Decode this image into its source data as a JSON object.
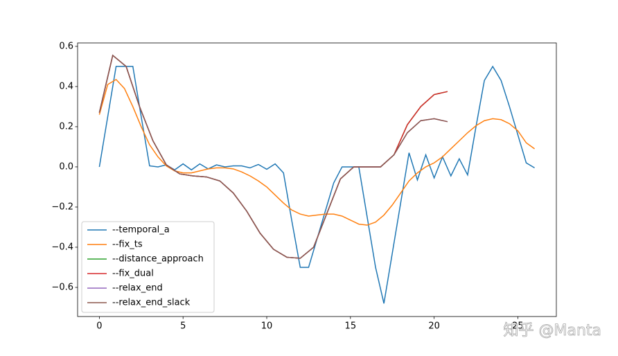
{
  "chart_data": {
    "type": "line",
    "xlim": [
      -1.3,
      27.3
    ],
    "ylim": [
      -0.745,
      0.617
    ],
    "xticks": [
      0,
      5,
      10,
      15,
      20,
      25
    ],
    "yticks": [
      {
        "value": -0.6,
        "label": "−0.6"
      },
      {
        "value": -0.4,
        "label": "−0.4"
      },
      {
        "value": -0.2,
        "label": "−0.2"
      },
      {
        "value": 0,
        "label": "0.0"
      },
      0.2,
      0.4,
      0.6
    ],
    "legend": "lower left",
    "watermark": "知乎 @Manta",
    "series": [
      {
        "name": "--temporal_a",
        "color": "#1f77b4",
        "x": [
          0,
          0.5,
          1,
          1.5,
          2,
          2.5,
          3,
          3.5,
          4,
          4.5,
          5,
          5.5,
          6,
          6.5,
          7,
          7.5,
          8,
          8.5,
          9,
          9.5,
          10,
          10.5,
          11,
          11.5,
          12,
          12.5,
          13,
          13.5,
          14,
          14.5,
          15,
          15.5,
          16,
          16.5,
          17,
          17.5,
          18,
          18.5,
          19,
          19.5,
          20,
          20.5,
          21,
          21.5,
          22,
          22.5,
          23,
          23.5,
          24,
          24.5,
          25,
          25.5,
          26
        ],
        "values": [
          0,
          0.25,
          0.5,
          0.5,
          0.5,
          0.25,
          0.005,
          0,
          0.01,
          -0.015,
          0.015,
          -0.015,
          0.015,
          -0.01,
          0.01,
          0,
          0.005,
          0.005,
          -0.005,
          0.012,
          -0.012,
          0.015,
          -0.03,
          -0.27,
          -0.5,
          -0.5,
          -0.36,
          -0.22,
          -0.08,
          0,
          0,
          0,
          -0.25,
          -0.5,
          -0.68,
          -0.43,
          -0.18,
          0.07,
          -0.065,
          0.06,
          -0.055,
          0.05,
          -0.045,
          0.04,
          -0.04,
          0.2,
          0.43,
          0.5,
          0.43,
          0.3,
          0.16,
          0.02,
          -0.005
        ]
      },
      {
        "name": "--fix_ts",
        "color": "#ff7f0e",
        "x": [
          0,
          0.5,
          1,
          1.5,
          2,
          2.5,
          3,
          3.5,
          4,
          4.5,
          5,
          5.5,
          6,
          6.5,
          7,
          7.5,
          8,
          8.5,
          9,
          9.5,
          10,
          10.5,
          11,
          11.5,
          12,
          12.5,
          13,
          13.5,
          14,
          14.5,
          15,
          15.5,
          16,
          16.5,
          17,
          17.5,
          18,
          18.5,
          19,
          19.5,
          20,
          20.5,
          21,
          21.5,
          22,
          22.5,
          23,
          23.5,
          24,
          24.5,
          25,
          25.5,
          26
        ],
        "values": [
          0.26,
          0.41,
          0.435,
          0.39,
          0.3,
          0.2,
          0.11,
          0.05,
          0.005,
          -0.02,
          -0.03,
          -0.03,
          -0.02,
          -0.01,
          -0.005,
          -0.005,
          -0.01,
          -0.025,
          -0.045,
          -0.07,
          -0.1,
          -0.14,
          -0.18,
          -0.215,
          -0.235,
          -0.245,
          -0.24,
          -0.235,
          -0.235,
          -0.245,
          -0.265,
          -0.285,
          -0.29,
          -0.275,
          -0.24,
          -0.19,
          -0.13,
          -0.07,
          -0.03,
          0,
          0.02,
          0.05,
          0.09,
          0.13,
          0.17,
          0.205,
          0.23,
          0.24,
          0.235,
          0.215,
          0.18,
          0.12,
          0.09
        ]
      },
      {
        "name": "--distance_approach",
        "color": "#2ca02c",
        "x": [
          0,
          0.8,
          1.6,
          2.4,
          3.2,
          4,
          4.8,
          5.6,
          6.4,
          7.2,
          8,
          8.8,
          9.6,
          10.4,
          11.2,
          12,
          12.8,
          13.6,
          14.4,
          15.2,
          16,
          16.8,
          17.6,
          18.4,
          19.2,
          20,
          20.8
        ],
        "values": [
          0.27,
          0.555,
          0.5,
          0.3,
          0.13,
          0.01,
          -0.035,
          -0.045,
          -0.05,
          -0.07,
          -0.13,
          -0.22,
          -0.33,
          -0.41,
          -0.45,
          -0.455,
          -0.4,
          -0.23,
          -0.06,
          0,
          0,
          0,
          0.06,
          0.21,
          0.3,
          0.36,
          0.375
        ]
      },
      {
        "name": "--fix_dual",
        "color": "#d62728",
        "x": [
          0,
          0.8,
          1.6,
          2.4,
          3.2,
          4,
          4.8,
          5.6,
          6.4,
          7.2,
          8,
          8.8,
          9.6,
          10.4,
          11.2,
          12,
          12.8,
          13.6,
          14.4,
          15.2,
          16,
          16.8,
          17.6,
          18.4,
          19.2,
          20,
          20.8
        ],
        "values": [
          0.27,
          0.555,
          0.5,
          0.3,
          0.13,
          0.01,
          -0.035,
          -0.045,
          -0.05,
          -0.07,
          -0.13,
          -0.22,
          -0.33,
          -0.41,
          -0.45,
          -0.455,
          -0.4,
          -0.23,
          -0.06,
          0,
          0,
          0,
          0.06,
          0.21,
          0.3,
          0.36,
          0.375
        ]
      },
      {
        "name": "--relax_end",
        "color": "#9467bd",
        "x": [
          0,
          0.8,
          1.6,
          2.4,
          3.2,
          4,
          4.8,
          5.6,
          6.4,
          7.2,
          8,
          8.8,
          9.6,
          10.4,
          11.2,
          12,
          12.8,
          13.6,
          14.4,
          15.2,
          16,
          16.8,
          17.6,
          18.4,
          19.2,
          20,
          20.8
        ],
        "values": [
          0.27,
          0.555,
          0.5,
          0.3,
          0.13,
          0.01,
          -0.035,
          -0.045,
          -0.05,
          -0.07,
          -0.13,
          -0.22,
          -0.33,
          -0.41,
          -0.45,
          -0.455,
          -0.4,
          -0.23,
          -0.06,
          0,
          0,
          0,
          0.06,
          0.17,
          0.23,
          0.24,
          0.225
        ]
      },
      {
        "name": "--relax_end_slack",
        "color": "#8c564b",
        "x": [
          0,
          0.8,
          1.6,
          2.4,
          3.2,
          4,
          4.8,
          5.6,
          6.4,
          7.2,
          8,
          8.8,
          9.6,
          10.4,
          11.2,
          12,
          12.8,
          13.6,
          14.4,
          15.2,
          16,
          16.8,
          17.6,
          18.4,
          19.2,
          20,
          20.8
        ],
        "values": [
          0.27,
          0.555,
          0.5,
          0.3,
          0.13,
          0.01,
          -0.035,
          -0.045,
          -0.05,
          -0.07,
          -0.13,
          -0.22,
          -0.33,
          -0.41,
          -0.45,
          -0.455,
          -0.4,
          -0.23,
          -0.06,
          0,
          0,
          0,
          0.06,
          0.17,
          0.23,
          0.24,
          0.225
        ]
      }
    ]
  }
}
